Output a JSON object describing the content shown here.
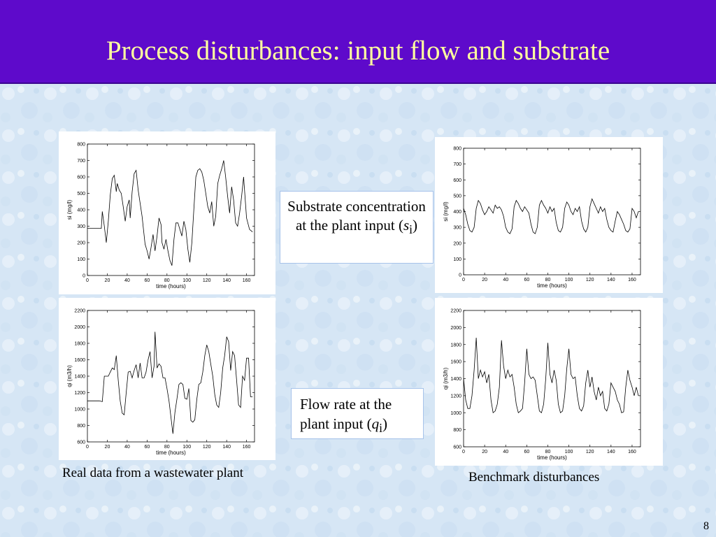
{
  "slide": {
    "title": "Process disturbances: input flow and substrate",
    "page_number": "8",
    "title_bar_color": "#5e0acb",
    "title_text_color": "#ffff9f"
  },
  "annotations": {
    "substrate_text": "Substrate concentration at the plant input (",
    "substrate_var": "s",
    "substrate_sub": "i",
    "substrate_close": ")",
    "flow_text": "Flow rate at the plant input (",
    "flow_var": "q",
    "flow_sub": "i",
    "flow_close": ")"
  },
  "captions": {
    "left": "Real data from a wastewater plant",
    "right": "Benchmark disturbances"
  },
  "chart_data": [
    {
      "type": "line",
      "xlabel": "time (hours)",
      "ylabel": "si (mg/l)",
      "xlim": [
        0,
        168
      ],
      "ylim": [
        0,
        800
      ],
      "xticks": [
        0,
        20,
        40,
        60,
        80,
        100,
        120,
        140,
        160
      ],
      "yticks": [
        0,
        100,
        200,
        300,
        400,
        500,
        600,
        700,
        800
      ],
      "grid": false,
      "series": [
        {
          "x": [
            0,
            3,
            6,
            9,
            12,
            14,
            15,
            17,
            19,
            21,
            23,
            25,
            27,
            29,
            30,
            32,
            34,
            36,
            38,
            40,
            42,
            43,
            45,
            47,
            49,
            51,
            53,
            55,
            56,
            58,
            60,
            62,
            64,
            66,
            68,
            70,
            72,
            74,
            75,
            77,
            79,
            81,
            83,
            85,
            87,
            89,
            91,
            93,
            95,
            97,
            99,
            101,
            103,
            105,
            107,
            109,
            111,
            113,
            115,
            117,
            119,
            121,
            123,
            125,
            127,
            129,
            131,
            133,
            135,
            137,
            139,
            141,
            143,
            145,
            147,
            149,
            151,
            153,
            155,
            157,
            160,
            163,
            166
          ],
          "y": [
            287,
            287,
            287,
            287,
            287,
            287,
            390,
            300,
            200,
            330,
            490,
            590,
            610,
            510,
            560,
            520,
            500,
            420,
            330,
            420,
            460,
            350,
            510,
            620,
            640,
            520,
            440,
            360,
            300,
            190,
            150,
            100,
            170,
            250,
            150,
            240,
            350,
            310,
            200,
            160,
            220,
            150,
            90,
            60,
            220,
            320,
            320,
            280,
            240,
            330,
            280,
            160,
            80,
            200,
            400,
            600,
            640,
            650,
            630,
            580,
            500,
            420,
            380,
            450,
            300,
            360,
            560,
            610,
            650,
            700,
            600,
            480,
            380,
            540,
            460,
            320,
            300,
            380,
            480,
            600,
            350,
            280,
            265
          ]
        }
      ]
    },
    {
      "type": "line",
      "xlabel": "time (hours)",
      "ylabel": "si (mg/l)",
      "xlim": [
        0,
        168
      ],
      "ylim": [
        0,
        800
      ],
      "xticks": [
        0,
        20,
        40,
        60,
        80,
        100,
        120,
        140,
        160
      ],
      "yticks": [
        0,
        100,
        200,
        300,
        400,
        500,
        600,
        700,
        800
      ],
      "grid": false,
      "series": [
        {
          "x": [
            0,
            2,
            4,
            6,
            8,
            10,
            12,
            14,
            16,
            18,
            20,
            22,
            24,
            26,
            28,
            30,
            32,
            34,
            36,
            38,
            40,
            42,
            44,
            46,
            48,
            50,
            52,
            54,
            56,
            58,
            60,
            62,
            64,
            66,
            68,
            70,
            72,
            74,
            76,
            78,
            80,
            82,
            84,
            86,
            88,
            90,
            92,
            94,
            96,
            98,
            100,
            102,
            104,
            106,
            108,
            110,
            112,
            114,
            116,
            118,
            120,
            122,
            124,
            126,
            128,
            130,
            132,
            134,
            136,
            138,
            140,
            142,
            144,
            146,
            148,
            150,
            152,
            154,
            156,
            158,
            160,
            162,
            164,
            166
          ],
          "y": [
            420,
            380,
            320,
            280,
            270,
            300,
            420,
            470,
            450,
            410,
            380,
            400,
            430,
            410,
            390,
            440,
            420,
            430,
            410,
            370,
            300,
            270,
            260,
            290,
            430,
            470,
            450,
            420,
            400,
            430,
            410,
            390,
            320,
            270,
            260,
            300,
            440,
            470,
            440,
            420,
            390,
            430,
            400,
            420,
            330,
            280,
            270,
            300,
            420,
            460,
            440,
            400,
            380,
            420,
            400,
            430,
            340,
            290,
            270,
            300,
            430,
            480,
            450,
            420,
            390,
            430,
            400,
            420,
            350,
            300,
            280,
            270,
            340,
            400,
            380,
            350,
            320,
            280,
            270,
            290,
            420,
            400,
            360,
            400
          ]
        }
      ]
    },
    {
      "type": "line",
      "xlabel": "time (hours)",
      "ylabel": "qi (m3/h)",
      "xlim": [
        0,
        168
      ],
      "ylim": [
        600,
        2200
      ],
      "xticks": [
        0,
        20,
        40,
        60,
        80,
        100,
        120,
        140,
        160
      ],
      "yticks": [
        600,
        800,
        1000,
        1200,
        1400,
        1600,
        1800,
        2000,
        2200
      ],
      "grid": false,
      "series": [
        {
          "x": [
            0,
            4,
            8,
            12,
            15,
            17,
            19,
            21,
            23,
            25,
            27,
            29,
            31,
            33,
            35,
            37,
            39,
            41,
            43,
            45,
            47,
            49,
            51,
            53,
            55,
            57,
            59,
            61,
            63,
            65,
            67,
            68,
            70,
            72,
            74,
            76,
            78,
            80,
            82,
            84,
            86,
            88,
            90,
            92,
            94,
            96,
            98,
            100,
            102,
            104,
            106,
            108,
            110,
            112,
            114,
            116,
            118,
            120,
            122,
            124,
            126,
            128,
            130,
            132,
            134,
            136,
            138,
            140,
            142,
            144,
            146,
            148,
            150,
            152,
            154,
            156,
            158,
            160,
            162,
            164,
            166
          ],
          "y": [
            1100,
            1100,
            1100,
            1100,
            1090,
            1400,
            1400,
            1400,
            1450,
            1500,
            1480,
            1650,
            1350,
            1100,
            950,
            930,
            1200,
            1450,
            1460,
            1380,
            1470,
            1540,
            1380,
            1560,
            1380,
            1380,
            1450,
            1600,
            1700,
            1380,
            1520,
            1940,
            1500,
            1550,
            1520,
            1380,
            1380,
            1250,
            1100,
            900,
            700,
            960,
            1120,
            1300,
            1320,
            1300,
            1130,
            1120,
            1250,
            860,
            840,
            870,
            1120,
            1300,
            1320,
            1450,
            1650,
            1780,
            1700,
            1550,
            1400,
            1180,
            1050,
            1020,
            1200,
            1500,
            1650,
            1880,
            1820,
            1470,
            1700,
            1650,
            1350,
            1050,
            1020,
            1400,
            1350,
            1620,
            1620,
            1150,
            1150
          ]
        }
      ]
    },
    {
      "type": "line",
      "xlabel": "time (hours)",
      "ylabel": "qi (m3/h)",
      "xlim": [
        0,
        168
      ],
      "ylim": [
        600,
        2200
      ],
      "xticks": [
        0,
        20,
        40,
        60,
        80,
        100,
        120,
        140,
        160
      ],
      "yticks": [
        600,
        800,
        1000,
        1200,
        1400,
        1600,
        1800,
        2000,
        2200
      ],
      "grid": false,
      "series": [
        {
          "x": [
            0,
            2,
            4,
            6,
            8,
            10,
            12,
            14,
            16,
            18,
            20,
            22,
            24,
            26,
            28,
            30,
            32,
            34,
            36,
            38,
            40,
            42,
            44,
            46,
            48,
            50,
            52,
            54,
            56,
            58,
            60,
            62,
            64,
            66,
            68,
            70,
            72,
            74,
            76,
            78,
            80,
            82,
            84,
            86,
            88,
            90,
            92,
            94,
            96,
            98,
            100,
            102,
            104,
            106,
            108,
            110,
            112,
            114,
            116,
            118,
            120,
            122,
            124,
            126,
            128,
            130,
            132,
            134,
            136,
            138,
            140,
            142,
            144,
            146,
            148,
            150,
            152,
            154,
            156,
            158,
            160,
            162,
            164,
            166
          ],
          "y": [
            1400,
            1150,
            1050,
            1050,
            1200,
            1500,
            1880,
            1400,
            1500,
            1420,
            1480,
            1350,
            1450,
            1150,
            1000,
            1020,
            1100,
            1300,
            1850,
            1550,
            1400,
            1500,
            1420,
            1450,
            1300,
            1100,
            1000,
            1020,
            1050,
            1350,
            1750,
            1450,
            1400,
            1420,
            1380,
            1200,
            1020,
            1000,
            1100,
            1400,
            1820,
            1450,
            1350,
            1500,
            1380,
            1100,
            1000,
            1020,
            1200,
            1520,
            1750,
            1450,
            1400,
            1420,
            1200,
            1050,
            1020,
            1080,
            1350,
            1500,
            1300,
            1420,
            1250,
            1150,
            1300,
            1200,
            1250,
            1050,
            1020,
            1100,
            1350,
            1300,
            1250,
            1150,
            1100,
            1000,
            1010,
            1300,
            1500,
            1380,
            1300,
            1200,
            1300,
            1200
          ]
        }
      ]
    }
  ]
}
